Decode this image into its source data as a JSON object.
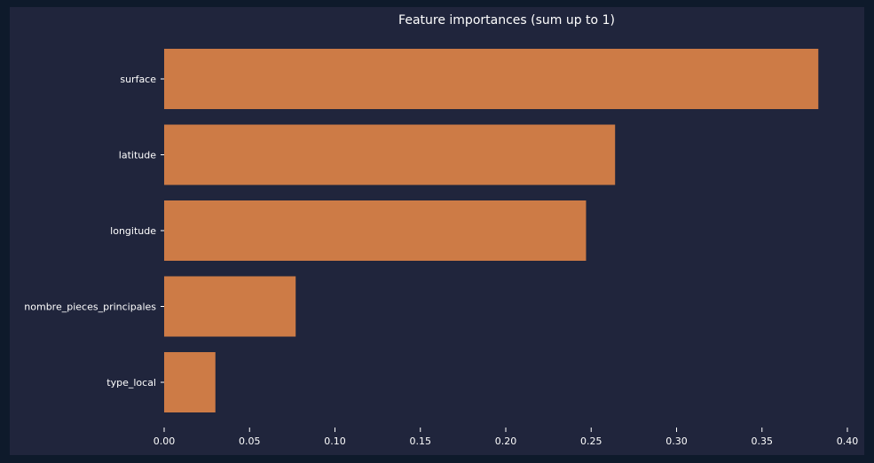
{
  "chart_data": {
    "type": "bar",
    "orientation": "horizontal",
    "title": "Feature importances (sum up to 1)",
    "xlabel": "",
    "ylabel": "",
    "categories": [
      "surface",
      "latitude",
      "longitude",
      "nombre_pieces_principales",
      "type_local"
    ],
    "values": [
      0.383,
      0.264,
      0.247,
      0.077,
      0.03
    ],
    "xlim": [
      0,
      0.4
    ],
    "xticks": [
      "0.00",
      "0.05",
      "0.10",
      "0.15",
      "0.20",
      "0.25",
      "0.30",
      "0.35",
      "0.40"
    ],
    "grid": false,
    "colors": {
      "bar": "#cd7b46",
      "panel": "#20253c",
      "background": "#0e1a2b",
      "text": "#ffffff"
    }
  }
}
